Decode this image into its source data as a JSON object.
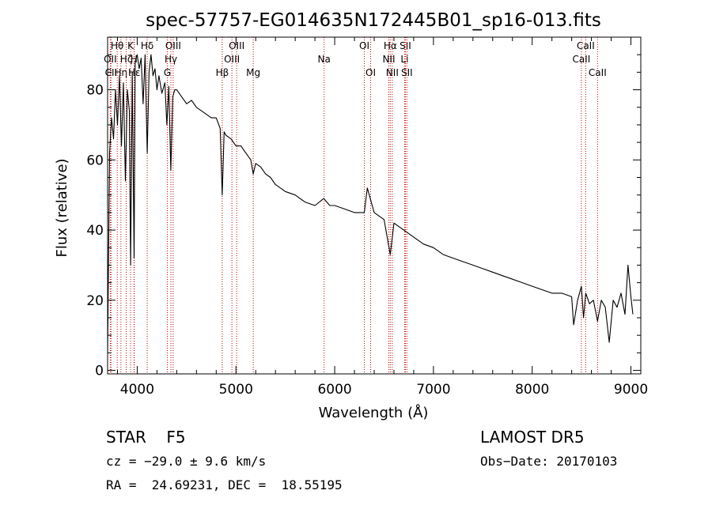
{
  "chart_data": {
    "type": "line",
    "title": "spec-57757-EG014635N172445B01_sp16-013.fits",
    "xlabel": "Wavelength (Å)",
    "ylabel": "Flux (relative)",
    "xlim": [
      3700,
      9100
    ],
    "ylim": [
      -1,
      95
    ],
    "xticks": [
      4000,
      5000,
      6000,
      7000,
      8000,
      9000
    ],
    "yticks": [
      0,
      20,
      40,
      60,
      80
    ],
    "grid": false,
    "series": [
      {
        "color": "#000000",
        "x": [
          3700,
          3720,
          3740,
          3760,
          3780,
          3800,
          3820,
          3840,
          3860,
          3880,
          3900,
          3920,
          3933,
          3950,
          3968,
          3980,
          4000,
          4020,
          4040,
          4060,
          4080,
          4101,
          4120,
          4140,
          4160,
          4180,
          4200,
          4220,
          4250,
          4280,
          4300,
          4320,
          4340,
          4360,
          4380,
          4400,
          4450,
          4500,
          4550,
          4600,
          4650,
          4700,
          4750,
          4800,
          4840,
          4861,
          4880,
          4900,
          4950,
          5000,
          5050,
          5100,
          5150,
          5175,
          5200,
          5250,
          5300,
          5350,
          5400,
          5450,
          5500,
          5600,
          5700,
          5800,
          5890,
          5950,
          6000,
          6100,
          6200,
          6300,
          6330,
          6400,
          6500,
          6563,
          6600,
          6700,
          6800,
          6900,
          7000,
          7100,
          7200,
          7300,
          7400,
          7500,
          7600,
          7700,
          7800,
          7900,
          8000,
          8100,
          8200,
          8300,
          8400,
          8420,
          8460,
          8498,
          8520,
          8542,
          8580,
          8620,
          8662,
          8700,
          8740,
          8780,
          8820,
          8860,
          8900,
          8940,
          8970,
          9000,
          9020
        ],
        "y": [
          5,
          62,
          72,
          66,
          80,
          70,
          84,
          64,
          82,
          54,
          80,
          74,
          30,
          85,
          32,
          88,
          90,
          86,
          89,
          76,
          90,
          62,
          85,
          90,
          84,
          86,
          80,
          84,
          79,
          82,
          70,
          81,
          57,
          78,
          80,
          80,
          78,
          76,
          77,
          75,
          74,
          73,
          72,
          72,
          69,
          50,
          68,
          67,
          66,
          64,
          64,
          62,
          60,
          56,
          59,
          58,
          56,
          55,
          53,
          52,
          51,
          50,
          48,
          47,
          49,
          47,
          47,
          46,
          45,
          45,
          52,
          45,
          43,
          33,
          42,
          40,
          38,
          36,
          35,
          33,
          32,
          31,
          30,
          29,
          28,
          27,
          26,
          25,
          24,
          23,
          22,
          22,
          21,
          13,
          20,
          24,
          15,
          22,
          19,
          20,
          14,
          20,
          18,
          8,
          20,
          18,
          22,
          16,
          30,
          21,
          16
        ]
      }
    ],
    "line_markers": [
      {
        "label": "Hθ",
        "x": 3798,
        "row": 0
      },
      {
        "label": "OII",
        "x": 3727,
        "row": 1
      },
      {
        "label": "CII",
        "x": 3735,
        "row": 2
      },
      {
        "label": "Hη",
        "x": 3835,
        "row": 2
      },
      {
        "label": "Hζ",
        "x": 3889,
        "row": 1
      },
      {
        "label": "K",
        "x": 3933,
        "row": 0
      },
      {
        "label": "H",
        "x": 3968,
        "row": 1
      },
      {
        "label": "Hε",
        "x": 3970,
        "row": 2
      },
      {
        "label": "Hδ",
        "x": 4101,
        "row": 0
      },
      {
        "label": "OIII",
        "x": 4364,
        "row": 0
      },
      {
        "label": "Hγ",
        "x": 4341,
        "row": 1
      },
      {
        "label": "G",
        "x": 4305,
        "row": 2
      },
      {
        "label": "OIII",
        "x": 5007,
        "row": 0
      },
      {
        "label": "OIII",
        "x": 4959,
        "row": 1
      },
      {
        "label": "Hβ",
        "x": 4861,
        "row": 2
      },
      {
        "label": "Mg",
        "x": 5175,
        "row": 2
      },
      {
        "label": "Na",
        "x": 5893,
        "row": 1
      },
      {
        "label": "OI",
        "x": 6300,
        "row": 0
      },
      {
        "label": "OI",
        "x": 6364,
        "row": 2
      },
      {
        "label": "Hα",
        "x": 6563,
        "row": 0
      },
      {
        "label": "NII",
        "x": 6548,
        "row": 1
      },
      {
        "label": "NII",
        "x": 6583,
        "row": 2
      },
      {
        "label": "SII",
        "x": 6716,
        "row": 0
      },
      {
        "label": "Li",
        "x": 6708,
        "row": 1
      },
      {
        "label": "SII",
        "x": 6731,
        "row": 2
      },
      {
        "label": "CaII",
        "x": 8542,
        "row": 0
      },
      {
        "label": "CaII",
        "x": 8498,
        "row": 1
      },
      {
        "label": "CaII",
        "x": 8662,
        "row": 2
      }
    ]
  },
  "info": {
    "class_text": "STAR    F5",
    "survey_text": "LAMOST DR5",
    "cz_text": "cz = −29.0 ± 9.6 km/s",
    "obs_date_text": "Obs−Date: 20170103",
    "radec_text": "RA =  24.69231, DEC =  18.55195"
  },
  "colors": {
    "spectrum": "#000000",
    "marker_line": "#c00000",
    "frame": "#000000"
  }
}
